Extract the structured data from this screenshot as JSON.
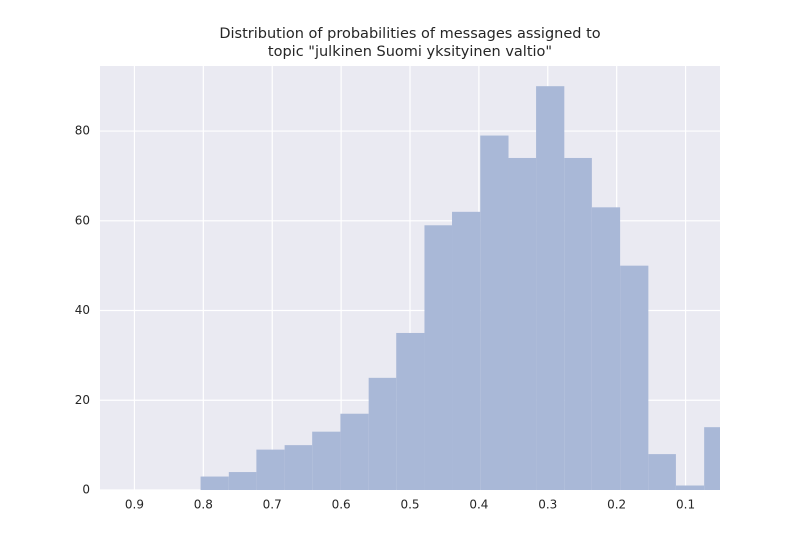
{
  "chart_data": {
    "type": "histogram",
    "title": [
      "Distribution of probabilities of messages assigned to",
      "topic \"julkinen Suomi yksityinen valtio\""
    ],
    "bins": [
      0.033,
      0.073,
      0.114,
      0.154,
      0.195,
      0.236,
      0.276,
      0.317,
      0.357,
      0.398,
      0.439,
      0.479,
      0.52,
      0.56,
      0.601,
      0.642,
      0.682,
      0.723,
      0.763,
      0.804
    ],
    "counts": [
      14,
      1,
      8,
      50,
      63,
      74,
      90,
      74,
      79,
      62,
      59,
      35,
      25,
      17,
      13,
      10,
      9,
      4,
      3
    ],
    "color": "#a9b8d7",
    "xlim": [
      0.95,
      0.05
    ],
    "xticks": [
      0.9,
      0.8,
      0.7,
      0.6,
      0.5,
      0.4,
      0.3,
      0.2,
      0.1
    ],
    "ylim": [
      0,
      94.5
    ],
    "yticks": [
      0,
      20,
      40,
      60,
      80
    ],
    "grid": true
  }
}
